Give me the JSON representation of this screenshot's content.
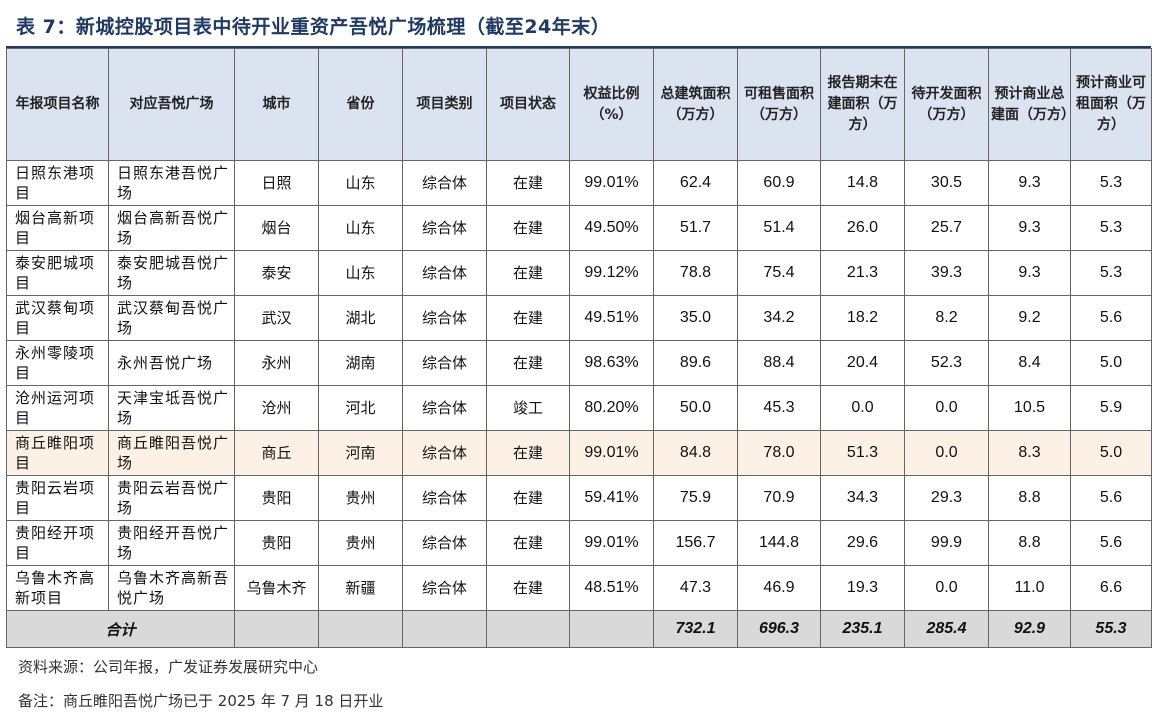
{
  "title": "表 7：新城控股项目表中待开业重资产吾悦广场梳理（截至24年末）",
  "headers": [
    "年报项目名称",
    "对应吾悦广场",
    "城市",
    "省份",
    "项目类别",
    "项目状态",
    "权益比例（%）",
    "总建筑面积（万方）",
    "可租售面积（万方）",
    "报告期末在建面积（万方）",
    "待开发面积（万方）",
    "预计商业总建面（万方）",
    "预计商业可租面积（万方）"
  ],
  "rows": [
    [
      "日照东港项目",
      "日照东港吾悦广场",
      "日照",
      "山东",
      "综合体",
      "在建",
      "99.01%",
      "62.4",
      "60.9",
      "14.8",
      "30.5",
      "9.3",
      "5.3"
    ],
    [
      "烟台高新项目",
      "烟台高新吾悦广场",
      "烟台",
      "山东",
      "综合体",
      "在建",
      "49.50%",
      "51.7",
      "51.4",
      "26.0",
      "25.7",
      "9.3",
      "5.3"
    ],
    [
      "泰安肥城项目",
      "泰安肥城吾悦广场",
      "泰安",
      "山东",
      "综合体",
      "在建",
      "99.12%",
      "78.8",
      "75.4",
      "21.3",
      "39.3",
      "9.3",
      "5.3"
    ],
    [
      "武汉蔡甸项目",
      "武汉蔡甸吾悦广场",
      "武汉",
      "湖北",
      "综合体",
      "在建",
      "49.51%",
      "35.0",
      "34.2",
      "18.2",
      "8.2",
      "9.2",
      "5.6"
    ],
    [
      "永州零陵项目",
      "永州吾悦广场",
      "永州",
      "湖南",
      "综合体",
      "在建",
      "98.63%",
      "89.6",
      "88.4",
      "20.4",
      "52.3",
      "8.4",
      "5.0"
    ],
    [
      "沧州运河项目",
      "天津宝坻吾悦广场",
      "沧州",
      "河北",
      "综合体",
      "竣工",
      "80.20%",
      "50.0",
      "45.3",
      "0.0",
      "0.0",
      "10.5",
      "5.9"
    ],
    [
      "商丘睢阳项目",
      "商丘睢阳吾悦广场",
      "商丘",
      "河南",
      "综合体",
      "在建",
      "99.01%",
      "84.8",
      "78.0",
      "51.3",
      "0.0",
      "8.3",
      "5.0"
    ],
    [
      "贵阳云岩项目",
      "贵阳云岩吾悦广场",
      "贵阳",
      "贵州",
      "综合体",
      "在建",
      "59.41%",
      "75.9",
      "70.9",
      "34.3",
      "29.3",
      "8.8",
      "5.6"
    ],
    [
      "贵阳经开项目",
      "贵阳经开吾悦广场",
      "贵阳",
      "贵州",
      "综合体",
      "在建",
      "99.01%",
      "156.7",
      "144.8",
      "29.6",
      "99.9",
      "8.8",
      "5.6"
    ],
    [
      "乌鲁木齐高新项目",
      "乌鲁木齐高新吾悦广场",
      "乌鲁木齐",
      "新疆",
      "综合体",
      "在建",
      "48.51%",
      "47.3",
      "46.9",
      "19.3",
      "0.0",
      "11.0",
      "6.6"
    ]
  ],
  "highlight_row_index": 6,
  "total": {
    "label": "合计",
    "values": [
      "732.1",
      "696.3",
      "235.1",
      "285.4",
      "92.9",
      "55.3"
    ]
  },
  "notes": {
    "source": "资料来源：公司年报，广发证券发展研究中心",
    "remark": "备注：商丘睢阳吾悦广场已于 2025 年 7 月 18 日开业"
  },
  "colors": {
    "header_bg": "#dbe3f0",
    "highlight_bg": "#fdf1e6",
    "total_bg": "#d9d9d9",
    "title_color": "#1f3a66"
  }
}
